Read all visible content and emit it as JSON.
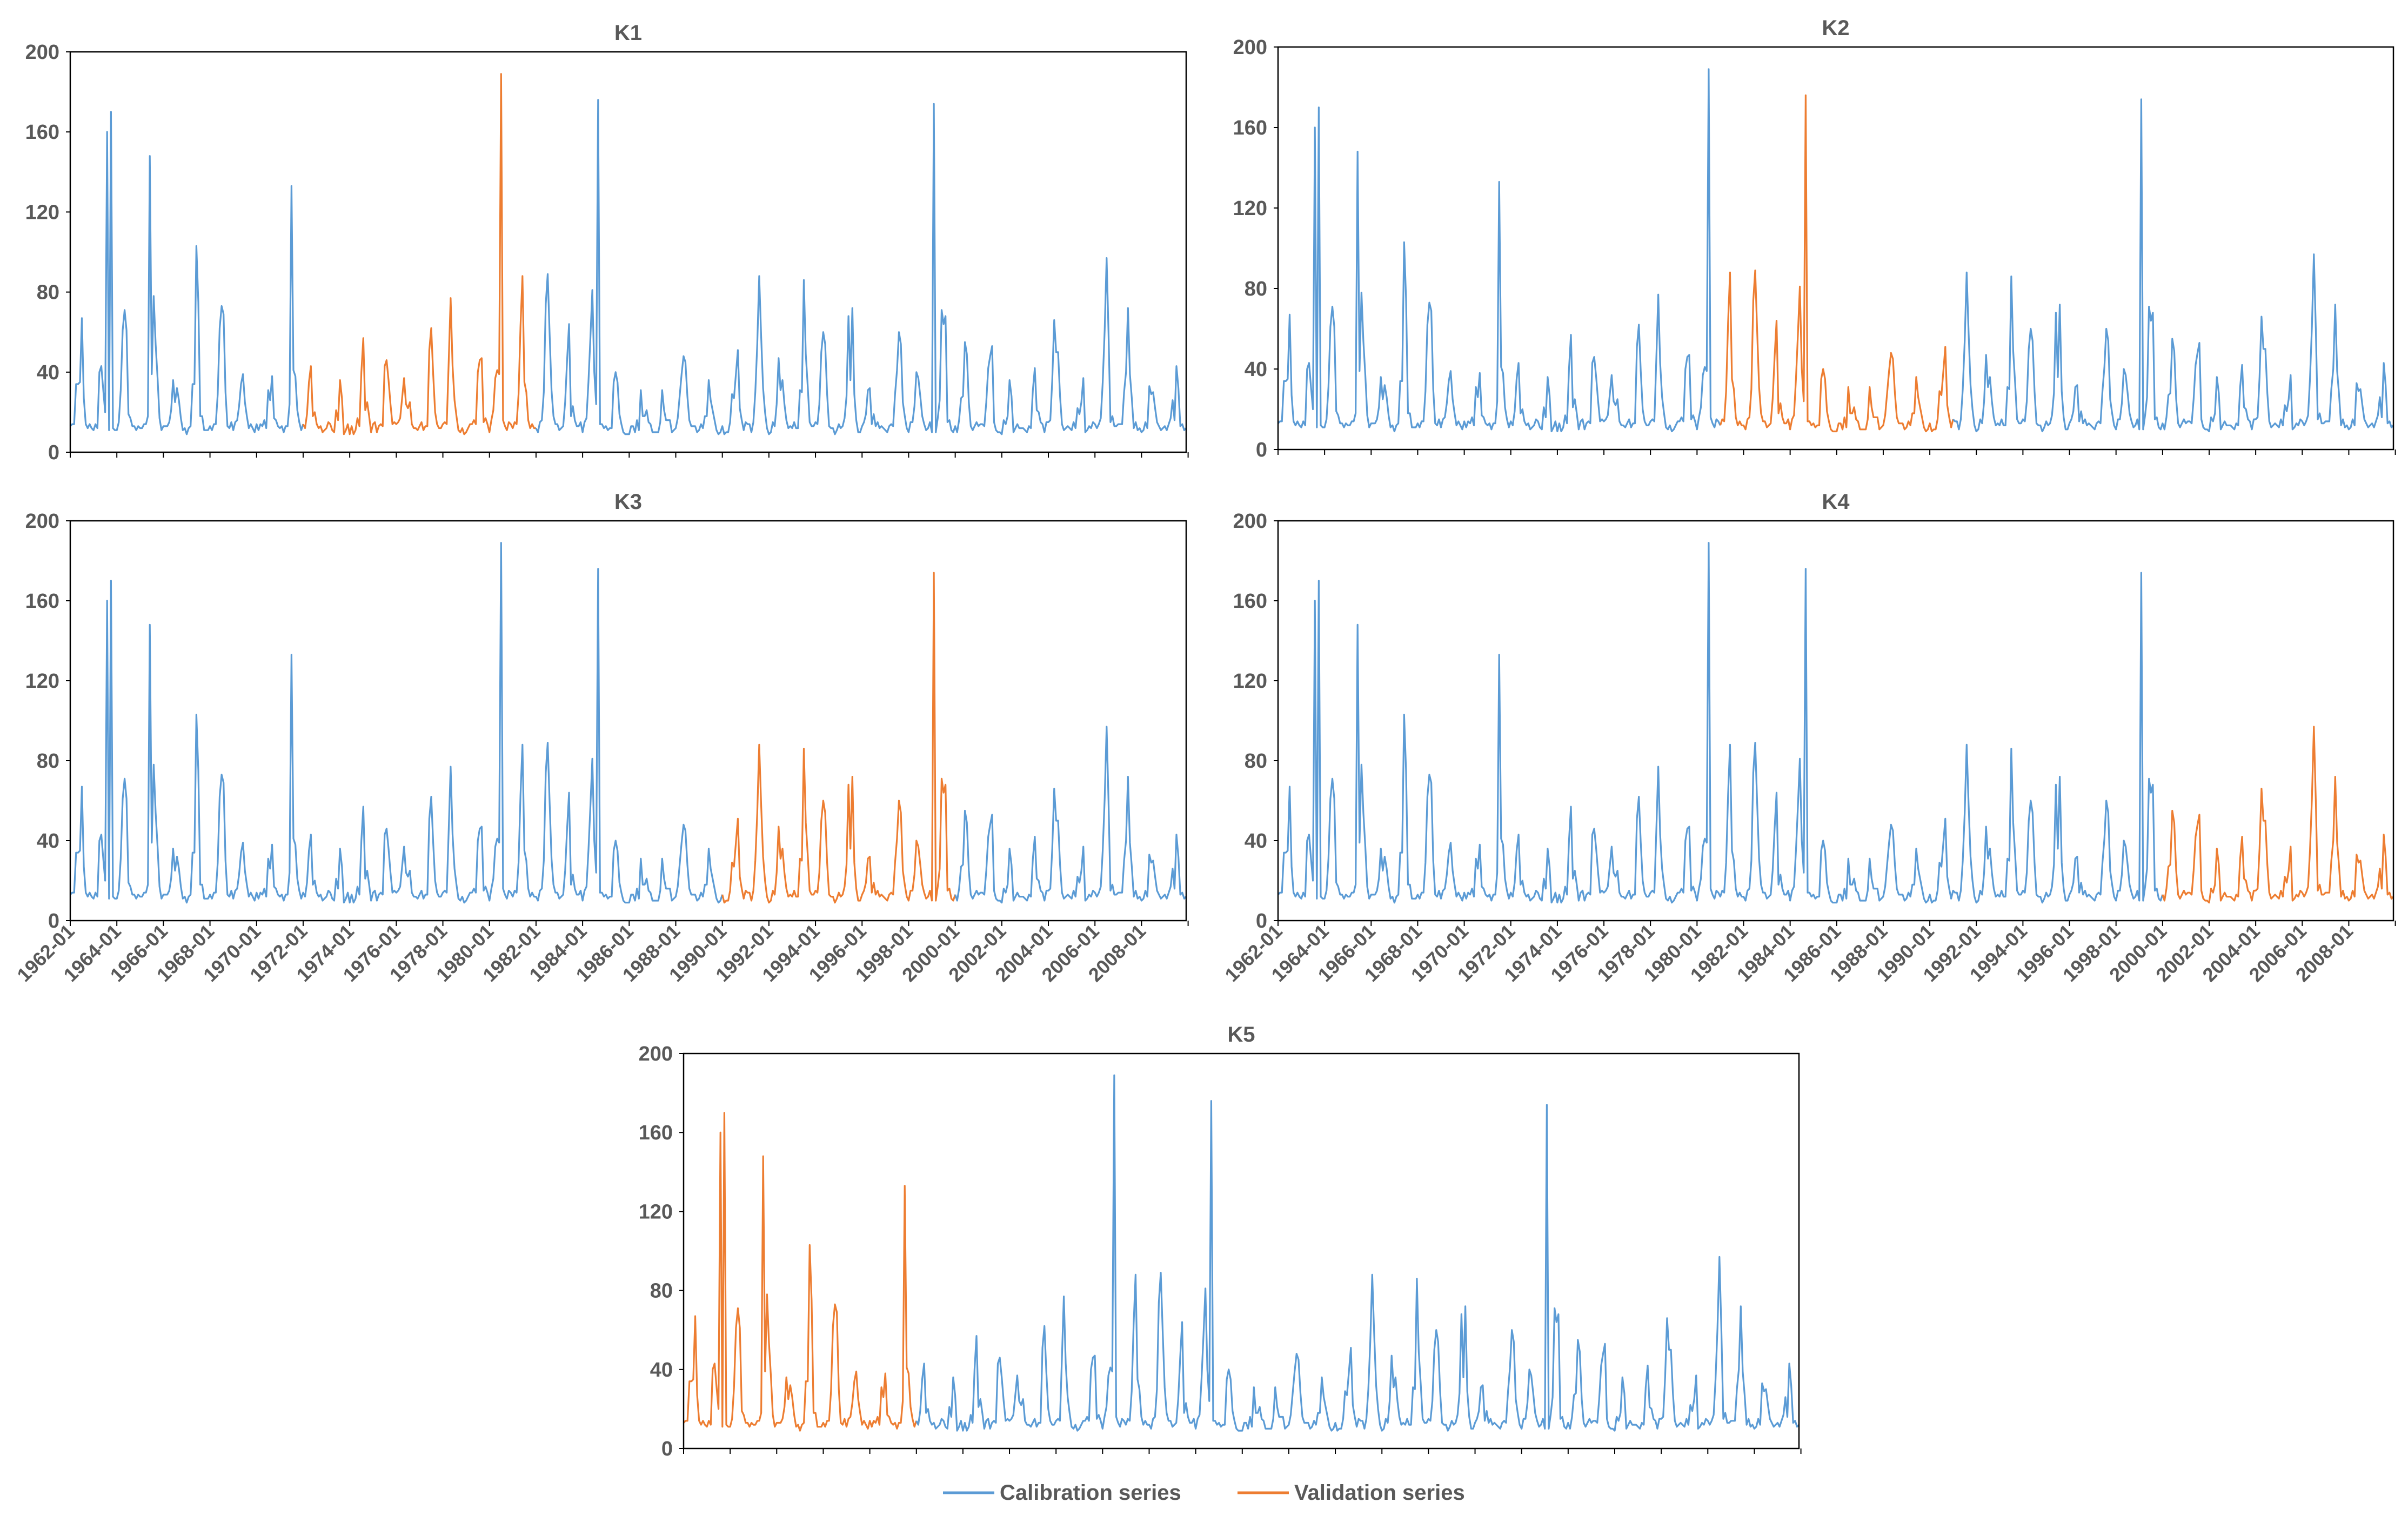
{
  "chart_data": [
    {
      "type": "line",
      "title": "K1",
      "ylim": [
        0,
        200
      ],
      "yticks": [
        0,
        40,
        80,
        120,
        160,
        200
      ],
      "x_start": "1962-01",
      "x_end": "2009-12",
      "tick_labels": [],
      "validation_range": [
        "1972-01",
        "1981-12"
      ],
      "grid": false,
      "series_names": [
        "Calibration series",
        "Validation series"
      ]
    },
    {
      "type": "line",
      "title": "K2",
      "ylim": [
        0,
        200
      ],
      "yticks": [
        0,
        40,
        80,
        120,
        160,
        200
      ],
      "x_start": "1962-01",
      "x_end": "2009-12",
      "tick_labels": [],
      "validation_range": [
        "1981-01",
        "1990-12"
      ],
      "grid": false,
      "series_names": [
        "Calibration series",
        "Validation series"
      ]
    },
    {
      "type": "line",
      "title": "K3",
      "ylim": [
        0,
        200
      ],
      "yticks": [
        0,
        40,
        80,
        120,
        160,
        200
      ],
      "x_start": "1962-01",
      "x_end": "2009-12",
      "tick_labels": [
        "1962-01",
        "1964-01",
        "1966-01",
        "1968-01",
        "1970-01",
        "1972-01",
        "1974-01",
        "1976-01",
        "1978-01",
        "1980-01",
        "1982-01",
        "1984-01",
        "1986-01",
        "1988-01",
        "1990-01",
        "1992-01",
        "1994-01",
        "1996-01",
        "1998-01",
        "2000-01",
        "2002-01",
        "2004-01",
        "2006-01",
        "2008-01"
      ],
      "validation_range": [
        "1990-01",
        "1999-12"
      ],
      "grid": false,
      "series_names": [
        "Calibration series",
        "Validation series"
      ]
    },
    {
      "type": "line",
      "title": "K4",
      "ylim": [
        0,
        200
      ],
      "yticks": [
        0,
        40,
        80,
        120,
        160,
        200
      ],
      "x_start": "1962-01",
      "x_end": "2009-12",
      "tick_labels": [
        "1962-01",
        "1964-01",
        "1966-01",
        "1968-01",
        "1970-01",
        "1972-01",
        "1974-01",
        "1976-01",
        "1978-01",
        "1980-01",
        "1982-01",
        "1984-01",
        "1986-01",
        "1988-01",
        "1990-01",
        "1992-01",
        "1994-01",
        "1996-01",
        "1998-01",
        "2000-01",
        "2002-01",
        "2004-01",
        "2006-01",
        "2008-01"
      ],
      "validation_range": [
        "2000-01",
        "2009-12"
      ],
      "grid": false,
      "series_names": [
        "Calibration series",
        "Validation series"
      ]
    },
    {
      "type": "line",
      "title": "K5",
      "ylim": [
        0,
        200
      ],
      "yticks": [
        0,
        40,
        80,
        120,
        160,
        200
      ],
      "x_start": "1962-01",
      "x_end": "2009-12",
      "tick_labels": [],
      "validation_range": [
        "1962-01",
        "1971-12"
      ],
      "grid": false,
      "series_names": [
        "Calibration series",
        "Validation series"
      ]
    }
  ],
  "series_data": {
    "start": "1962-01",
    "frequency": "monthly",
    "notable_peaks": [
      {
        "date": "1963-08",
        "value": 160
      },
      {
        "date": "1963-10",
        "value": 170
      },
      {
        "date": "1965-06",
        "value": 148
      },
      {
        "date": "1971-07",
        "value": 133
      },
      {
        "date": "1980-07",
        "value": 189
      },
      {
        "date": "1984-09",
        "value": 176
      },
      {
        "date": "1999-02",
        "value": 174
      }
    ],
    "values": []
  },
  "legend": {
    "position": "bottom-center",
    "items": [
      {
        "label": "Calibration series",
        "color": "#5B9BD5"
      },
      {
        "label": "Validation series",
        "color": "#ED7D31"
      }
    ]
  },
  "colors": {
    "calibration": "#5B9BD5",
    "validation": "#ED7D31",
    "axis": "#000000",
    "text": "#595959"
  }
}
